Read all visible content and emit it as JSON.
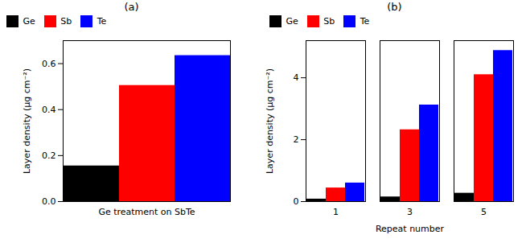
{
  "chart_data": [
    {
      "type": "bar",
      "title": "(a)",
      "categories": [
        "Ge treatment on SbTe"
      ],
      "ylabel": "Layer density (μg cm⁻²)",
      "series": [
        {
          "name": "Ge",
          "color": "#000000",
          "values": [
            0.155
          ]
        },
        {
          "name": "Sb",
          "color": "#ff0000",
          "values": [
            0.505
          ]
        },
        {
          "name": "Te",
          "color": "#0000ff",
          "values": [
            0.635
          ]
        }
      ],
      "ylim": [
        0,
        0.7
      ],
      "yticks": [
        {
          "value": 0,
          "label": "0.0"
        },
        0.2,
        0.4,
        0.6
      ],
      "legend": "upper left",
      "grid": false
    },
    {
      "type": "bar",
      "title": "(b)",
      "categories": [
        "1",
        "3",
        "5"
      ],
      "xlabel": "Repeat number",
      "ylabel": "Layer density (μg cm⁻²)",
      "series": [
        {
          "name": "Ge",
          "color": "#000000",
          "values": [
            0.08,
            0.15,
            0.27
          ]
        },
        {
          "name": "Sb",
          "color": "#ff0000",
          "values": [
            0.44,
            2.32,
            4.1
          ]
        },
        {
          "name": "Te",
          "color": "#0000ff",
          "values": [
            0.6,
            3.12,
            4.88
          ]
        }
      ],
      "ylim": [
        0,
        5.2
      ],
      "yticks": [
        0,
        2,
        4
      ],
      "legend": "upper left",
      "grid": false
    }
  ]
}
